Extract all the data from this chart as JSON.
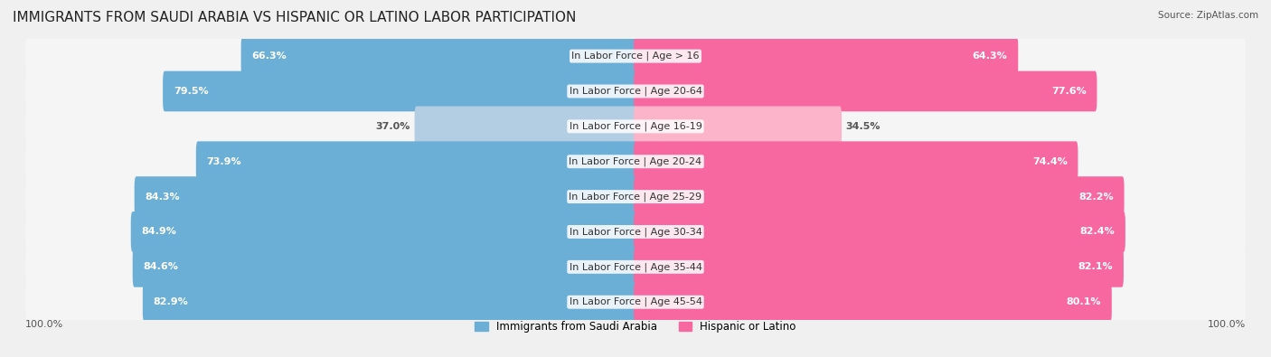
{
  "title": "IMMIGRANTS FROM SAUDI ARABIA VS HISPANIC OR LATINO LABOR PARTICIPATION",
  "source": "Source: ZipAtlas.com",
  "categories": [
    "In Labor Force | Age > 16",
    "In Labor Force | Age 20-64",
    "In Labor Force | Age 16-19",
    "In Labor Force | Age 20-24",
    "In Labor Force | Age 25-29",
    "In Labor Force | Age 30-34",
    "In Labor Force | Age 35-44",
    "In Labor Force | Age 45-54"
  ],
  "saudi_values": [
    66.3,
    79.5,
    37.0,
    73.9,
    84.3,
    84.9,
    84.6,
    82.9
  ],
  "hispanic_values": [
    64.3,
    77.6,
    34.5,
    74.4,
    82.2,
    82.4,
    82.1,
    80.1
  ],
  "saudi_color_strong": "#6baed6",
  "saudi_color_weak": "#b3cde3",
  "hispanic_color_strong": "#f768a1",
  "hispanic_color_weak": "#fbb4c9",
  "background_color": "#f0f0f0",
  "bar_bg_color": "#ffffff",
  "row_bg_color": "#e8e8e8",
  "legend_saudi": "Immigrants from Saudi Arabia",
  "legend_hispanic": "Hispanic or Latino",
  "max_value": 100.0,
  "bar_height": 0.55,
  "title_fontsize": 11,
  "label_fontsize": 8.5,
  "value_fontsize": 8,
  "category_fontsize": 8
}
